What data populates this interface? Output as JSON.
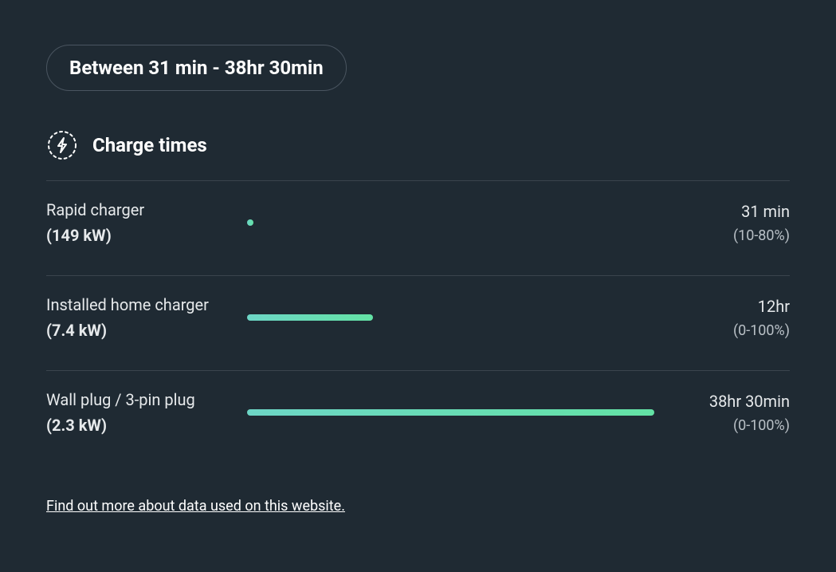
{
  "colors": {
    "background": "#1f2a33",
    "text_primary": "#ffffff",
    "text_secondary": "#e6e9eb",
    "text_muted": "#b9c0c6",
    "border": "#3a444d",
    "pill_border": "#4a5560",
    "bar_gradient_start": "#6dd6c6",
    "bar_gradient_end": "#63e2a5"
  },
  "pill": {
    "text": "Between 31 min - 38hr 30min"
  },
  "section": {
    "title": "Charge times",
    "icon_name": "bolt-icon"
  },
  "rows": [
    {
      "name": "Rapid charger",
      "power": "(149 kW)",
      "time": "31 min",
      "range": "(10-80%)",
      "bar_percent": 1.5
    },
    {
      "name": "Installed home charger",
      "power": "(7.4 kW)",
      "time": "12hr",
      "range": "(0-100%)",
      "bar_percent": 31
    },
    {
      "name": "Wall plug / 3-pin plug",
      "power": "(2.3 kW)",
      "time": "38hr 30min",
      "range": "(0-100%)",
      "bar_percent": 100
    }
  ],
  "footer": {
    "link_text": "Find out more about data used on this website."
  }
}
